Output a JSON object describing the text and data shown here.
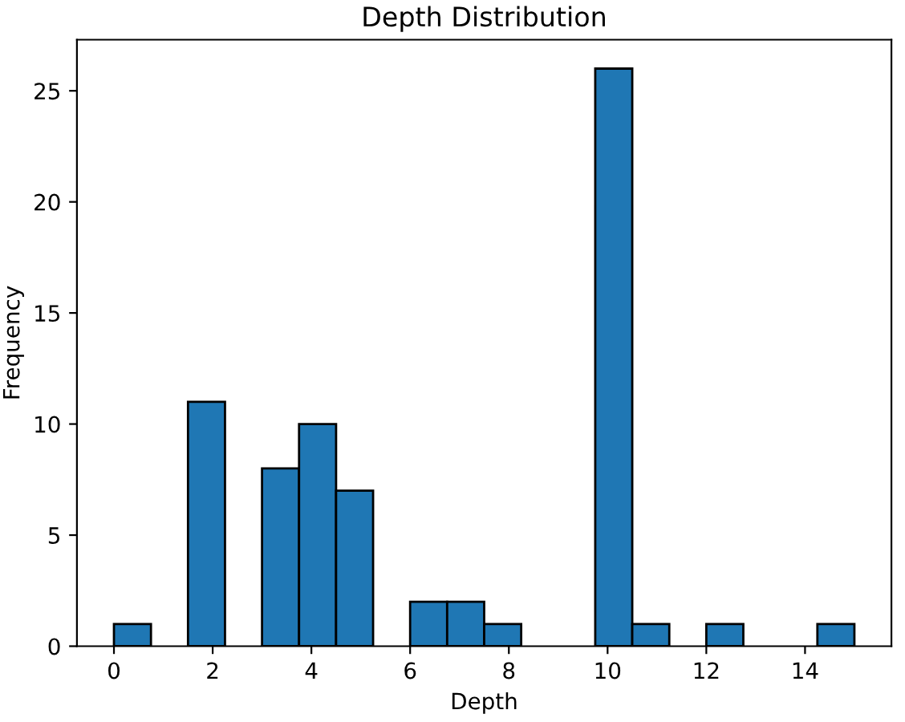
{
  "chart_data": {
    "type": "histogram",
    "title": "Depth Distribution",
    "xlabel": "Depth",
    "ylabel": "Frequency",
    "bins": [
      0,
      0.75,
      1.5,
      2.25,
      3,
      3.75,
      4.5,
      5.25,
      6,
      6.75,
      7.5,
      8.25,
      9,
      9.75,
      10.5,
      11.25,
      12,
      12.75,
      13.5,
      14.25,
      15
    ],
    "values": [
      1,
      0,
      11,
      0,
      8,
      10,
      7,
      0,
      2,
      2,
      1,
      0,
      0,
      26,
      1,
      0,
      1,
      0,
      0,
      1
    ],
    "color": "#1f77b4",
    "xlim": [
      -0.75,
      15.75
    ],
    "xticks": [
      0,
      2,
      4,
      6,
      8,
      10,
      12,
      14
    ],
    "ylim": [
      0,
      27.3
    ],
    "yticks": [
      0,
      5,
      10,
      15,
      20,
      25
    ],
    "grid": false
  }
}
